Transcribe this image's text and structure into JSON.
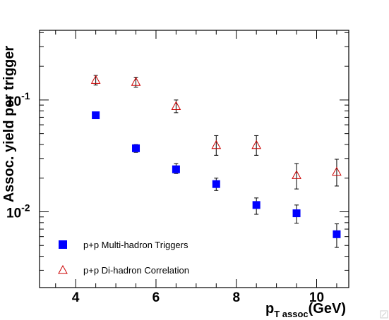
{
  "chart_data": {
    "type": "scatter",
    "xlabel_main": "p",
    "xlabel_sub": "T assoc",
    "xlabel_unit": "(GeV)",
    "ylabel": "Assoc. yield per trigger",
    "xlim": [
      3.1,
      10.8
    ],
    "ylim": [
      0.0021,
      0.42
    ],
    "yscale": "log",
    "x_ticks": [
      4,
      6,
      8,
      10
    ],
    "x_tick_labels": [
      "4",
      "6",
      "8",
      "10"
    ],
    "y_tick_labels": [
      {
        "value": 0.1,
        "base": "10",
        "exp": "-1"
      },
      {
        "value": 0.01,
        "base": "10",
        "exp": "-2"
      }
    ],
    "legend_position": "bottom-left",
    "series": [
      {
        "name": "p+p Multi-hadron Triggers",
        "marker": "filled-square",
        "color": "#0000ff",
        "points": [
          {
            "x": 4.5,
            "y": 0.073,
            "lo": 0.07,
            "hi": 0.076
          },
          {
            "x": 5.5,
            "y": 0.037,
            "lo": 0.034,
            "hi": 0.04
          },
          {
            "x": 6.5,
            "y": 0.024,
            "lo": 0.022,
            "hi": 0.027
          },
          {
            "x": 7.5,
            "y": 0.0177,
            "lo": 0.0155,
            "hi": 0.02
          },
          {
            "x": 8.5,
            "y": 0.0115,
            "lo": 0.0095,
            "hi": 0.0133
          },
          {
            "x": 9.5,
            "y": 0.0097,
            "lo": 0.0079,
            "hi": 0.0115
          },
          {
            "x": 10.5,
            "y": 0.0063,
            "lo": 0.0048,
            "hi": 0.0078
          }
        ]
      },
      {
        "name": "p+p Di-hadron Correlation",
        "marker": "open-triangle",
        "color": "#cc0000",
        "points": [
          {
            "x": 4.5,
            "y": 0.149,
            "lo": 0.136,
            "hi": 0.166
          },
          {
            "x": 5.5,
            "y": 0.143,
            "lo": 0.13,
            "hi": 0.16
          },
          {
            "x": 6.5,
            "y": 0.087,
            "lo": 0.077,
            "hi": 0.1
          },
          {
            "x": 7.5,
            "y": 0.039,
            "lo": 0.032,
            "hi": 0.048
          },
          {
            "x": 8.5,
            "y": 0.039,
            "lo": 0.032,
            "hi": 0.048
          },
          {
            "x": 9.5,
            "y": 0.021,
            "lo": 0.016,
            "hi": 0.027
          },
          {
            "x": 10.5,
            "y": 0.0225,
            "lo": 0.017,
            "hi": 0.0295
          }
        ]
      }
    ]
  }
}
